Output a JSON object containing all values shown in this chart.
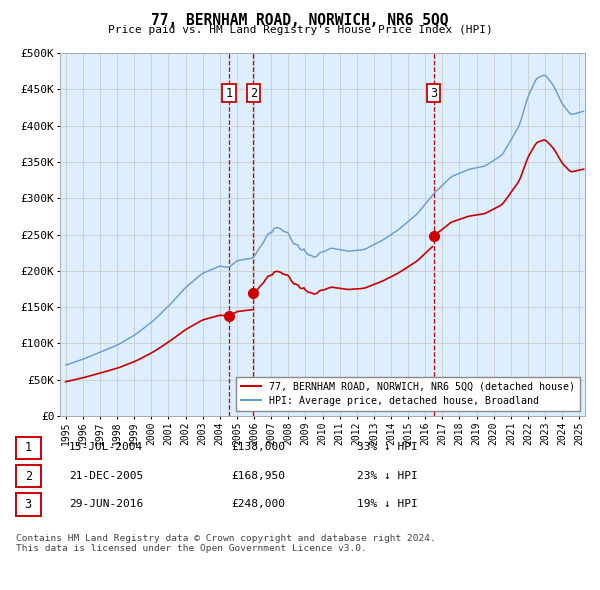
{
  "title": "77, BERNHAM ROAD, NORWICH, NR6 5QQ",
  "subtitle": "Price paid vs. HM Land Registry's House Price Index (HPI)",
  "hpi_label": "HPI: Average price, detached house, Broadland",
  "property_label": "77, BERNHAM ROAD, NORWICH, NR6 5QQ (detached house)",
  "sales": [
    {
      "date": "15-JUL-2004",
      "price": 138000,
      "label": "1",
      "pct": "33% ↓ HPI"
    },
    {
      "date": "21-DEC-2005",
      "price": 168950,
      "label": "2",
      "pct": "23% ↓ HPI"
    },
    {
      "date": "29-JUN-2016",
      "price": 248000,
      "label": "3",
      "pct": "19% ↓ HPI"
    }
  ],
  "ylim": [
    0,
    500000
  ],
  "yticks": [
    0,
    50000,
    100000,
    150000,
    200000,
    250000,
    300000,
    350000,
    400000,
    450000,
    500000
  ],
  "ytick_labels": [
    "£0",
    "£50K",
    "£100K",
    "£150K",
    "£200K",
    "£250K",
    "£300K",
    "£350K",
    "£400K",
    "£450K",
    "£500K"
  ],
  "hpi_color": "#6699cc",
  "property_color": "#cc0000",
  "vline_color": "#cc0000",
  "marker_color": "#cc0000",
  "grid_color": "#cccccc",
  "bg_color": "#ddeeff",
  "footer": "Contains HM Land Registry data © Crown copyright and database right 2024.\nThis data is licensed under the Open Government Licence v3.0.",
  "sale1_date_num": 2004.54,
  "sale2_date_num": 2005.97,
  "sale3_date_num": 2016.49
}
